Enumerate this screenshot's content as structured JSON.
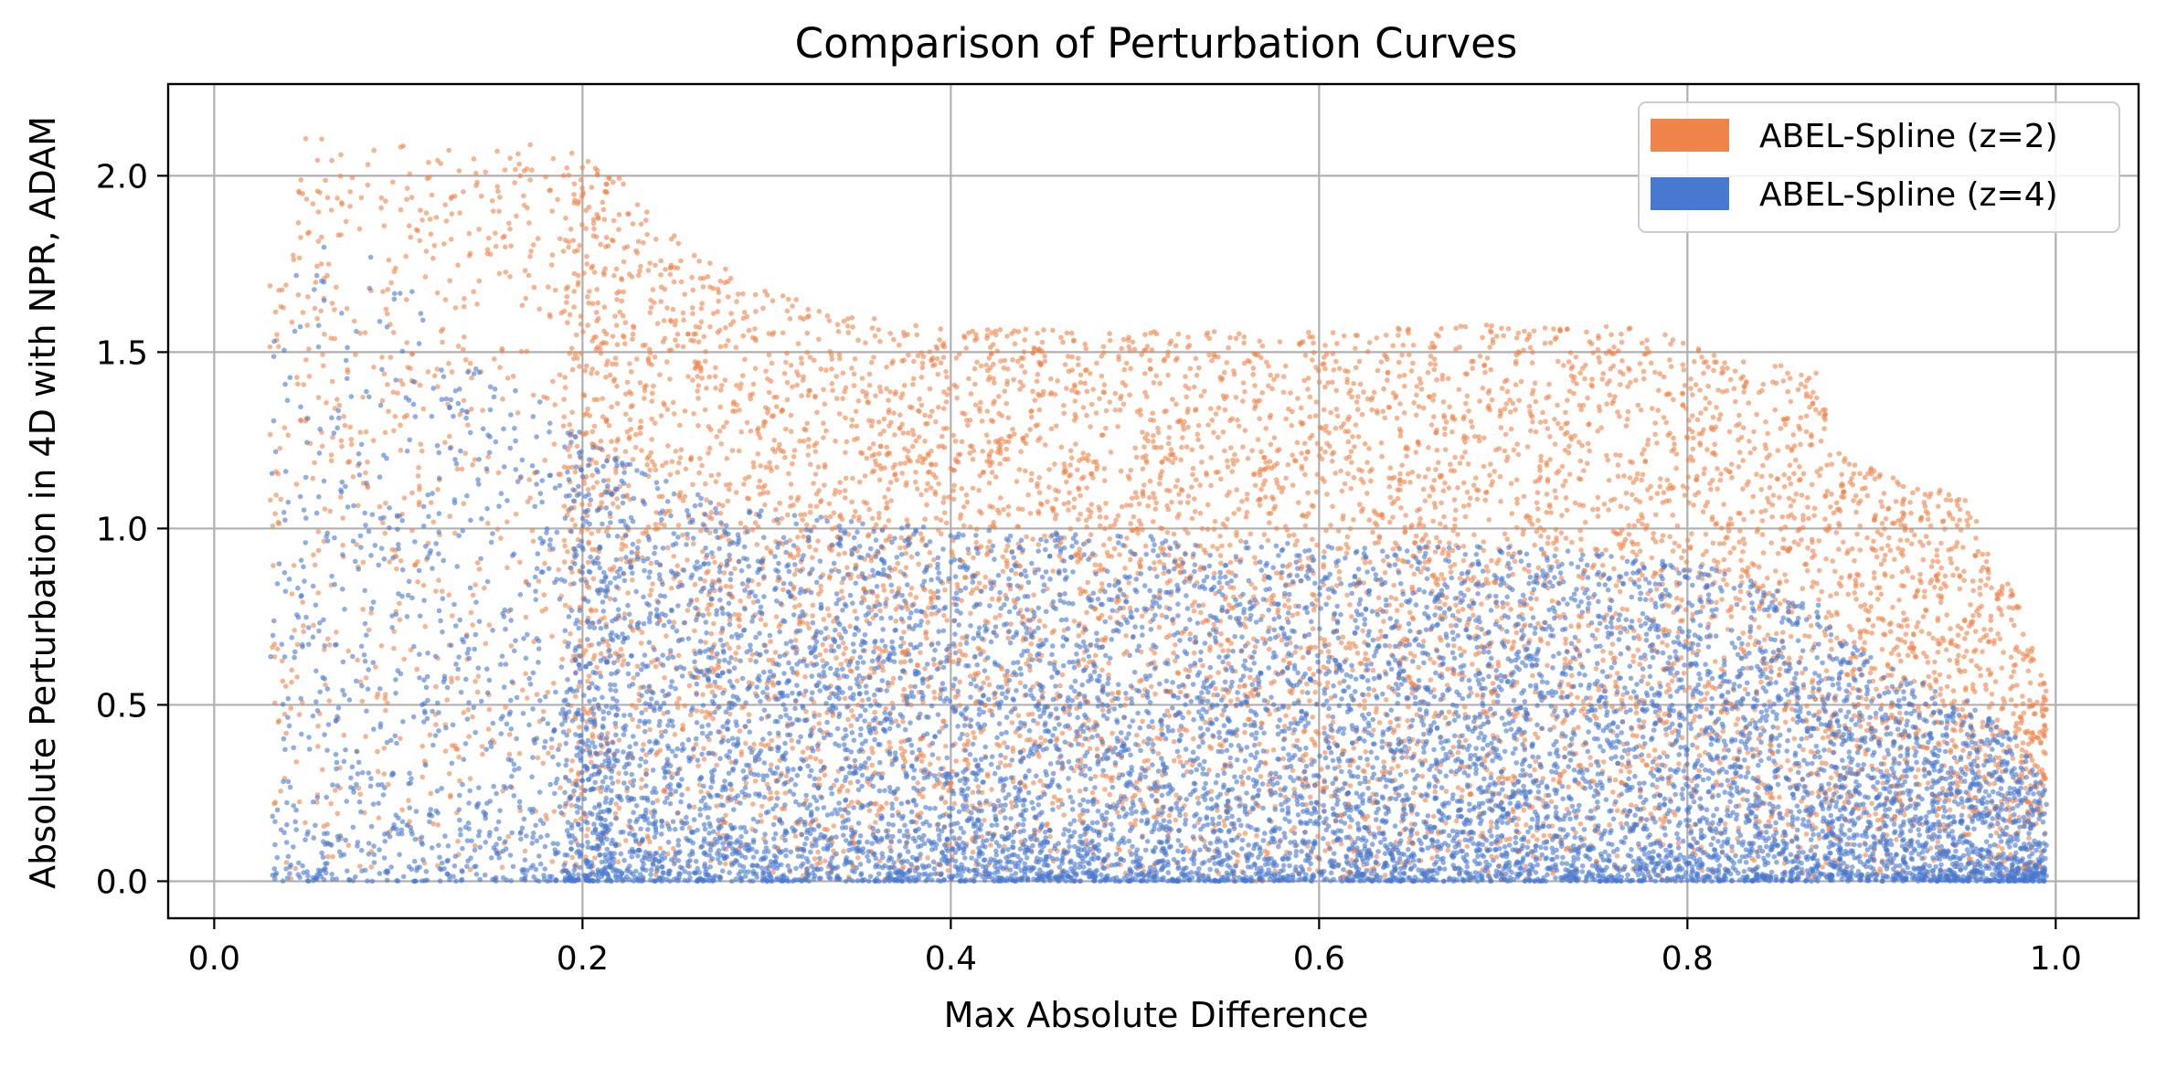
{
  "chart_data": {
    "type": "scatter",
    "title": "Comparison of Perturbation Curves",
    "xlabel": "Max Absolute Difference",
    "ylabel": "Absolute Perturbation in 4D with NPR, ADAM",
    "xlim": [
      -0.025,
      1.045
    ],
    "ylim": [
      -0.105,
      2.26
    ],
    "xticks": [
      0.0,
      0.2,
      0.4,
      0.6,
      0.8,
      1.0
    ],
    "xtick_labels": [
      "0.0",
      "0.2",
      "0.4",
      "0.6",
      "0.8",
      "1.0"
    ],
    "yticks": [
      0.0,
      0.5,
      1.0,
      1.5,
      2.0
    ],
    "ytick_labels": [
      "0.0",
      "0.5",
      "1.0",
      "1.5",
      "2.0"
    ],
    "grid": true,
    "legend_position": "top-right",
    "series": [
      {
        "name": "ABEL-Spline (z=2)",
        "color": "#ee8449",
        "envelope": {
          "x": [
            0.04,
            0.05,
            0.08,
            0.12,
            0.15,
            0.18,
            0.22,
            0.26,
            0.3,
            0.35,
            0.4,
            0.5,
            0.6,
            0.7,
            0.78,
            0.82,
            0.87,
            0.88,
            0.92,
            0.95,
            0.98,
            0.995
          ],
          "upper": [
            1.75,
            2.12,
            2.12,
            2.1,
            2.08,
            2.12,
            2.0,
            1.78,
            1.68,
            1.6,
            1.57,
            1.56,
            1.56,
            1.58,
            1.57,
            1.48,
            1.45,
            1.22,
            1.13,
            1.1,
            0.78,
            0.55
          ]
        }
      },
      {
        "name": "ABEL-Spline (z=4)",
        "color": "#4878cf",
        "envelope": {
          "x": [
            0.04,
            0.06,
            0.09,
            0.12,
            0.15,
            0.18,
            0.22,
            0.26,
            0.3,
            0.35,
            0.4,
            0.5,
            0.6,
            0.7,
            0.78,
            0.82,
            0.87,
            0.88,
            0.92,
            0.95,
            0.98,
            0.995
          ],
          "upper": [
            1.7,
            1.8,
            1.8,
            1.6,
            1.45,
            1.35,
            1.2,
            1.1,
            1.05,
            1.02,
            1.0,
            0.98,
            0.96,
            0.95,
            0.92,
            0.88,
            0.8,
            0.7,
            0.58,
            0.52,
            0.4,
            0.25
          ]
        }
      }
    ]
  }
}
